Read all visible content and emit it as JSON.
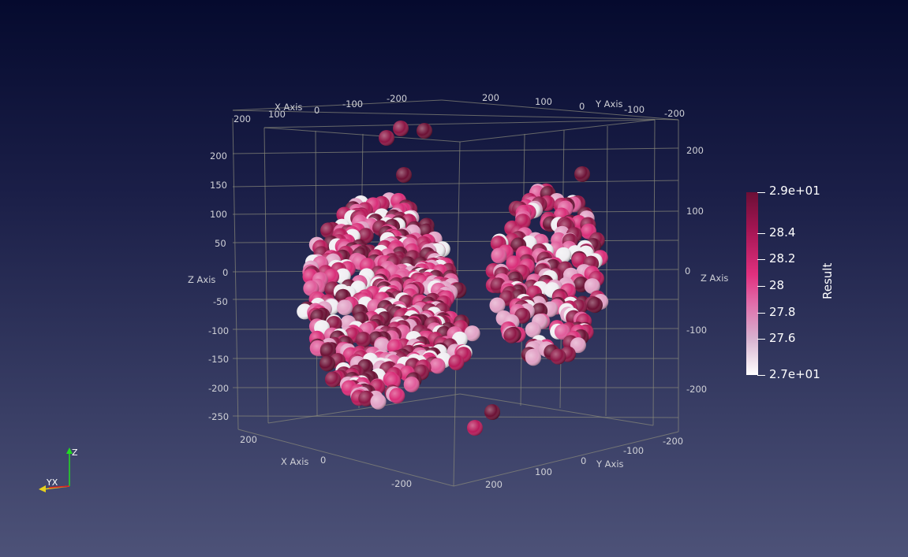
{
  "view": {
    "axes": {
      "x_label": "X Axis",
      "y_label": "Y Axis",
      "z_label": "Z Axis",
      "x_ticks_top": [
        "200",
        "100",
        "0",
        "-100",
        "-200"
      ],
      "y_ticks_top": [
        "200",
        "100",
        "0",
        "-100",
        "-200"
      ],
      "x_ticks_bottom": [
        "200",
        "0",
        "-200"
      ],
      "y_ticks_bottom": [
        "200",
        "100",
        "0",
        "-100",
        "-200"
      ],
      "z_ticks_left": [
        "200",
        "150",
        "100",
        "50",
        "0",
        "-50",
        "-100",
        "-150",
        "-200",
        "-250"
      ],
      "z_ticks_right": [
        "200",
        "100",
        "0",
        "-100",
        "-200"
      ]
    },
    "orientation_widget": {
      "z": "Z",
      "yx": "YX",
      "colors": {
        "z_axis": "#22dd22",
        "x_axis": "#e8d21c",
        "y_axis": "#dd2222"
      }
    }
  },
  "colorbar": {
    "title": "Result",
    "labels": [
      "2.9e+01",
      "28.4",
      "28.2",
      "28",
      "27.8",
      "27.6",
      "2.7e+01"
    ],
    "colors": [
      "#6b0f36",
      "#a31552",
      "#e0307e",
      "#e06aa8",
      "#d8b2d0",
      "#ffffff"
    ]
  },
  "points": {
    "sphere_color_scale": [
      "#6b1034",
      "#8c1544",
      "#b81a5a",
      "#d92d78",
      "#e05b9a",
      "#e2a2c6",
      "#f0eef2"
    ]
  }
}
